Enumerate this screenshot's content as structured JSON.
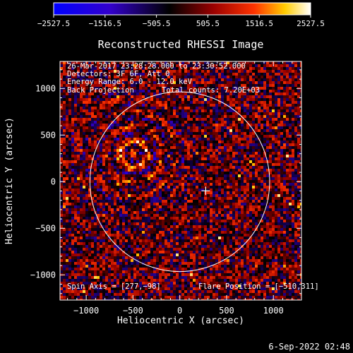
{
  "chart_data": {
    "type": "heatmap",
    "title": "Reconstructed RHESSI Image",
    "xlabel": "Heliocentric X (arcsec)",
    "ylabel": "Heliocentric Y (arcsec)",
    "xlim": [
      -1280,
      1300
    ],
    "ylim": [
      -1270,
      1290
    ],
    "x_ticks": [
      -1000,
      -500,
      0,
      500,
      1000
    ],
    "y_ticks": [
      -1000,
      -500,
      0,
      500,
      1000
    ],
    "x_tick_labels": [
      "−1000",
      "−500",
      "0",
      "500",
      "1000"
    ],
    "y_tick_labels": [
      "−1000",
      "−500",
      "0",
      "500",
      "1000"
    ],
    "colorbar": {
      "range": [
        -2527.5,
        2527.5
      ],
      "ticks": [
        -2527.5,
        -1516.5,
        -505.5,
        505.5,
        1516.5,
        2527.5
      ],
      "tick_labels": [
        "−2527.5",
        "−1516.5",
        "−505.5",
        "505.5",
        "1516.5",
        "2527.5"
      ],
      "colormap": [
        "#0000ff",
        "#3300cc",
        "#000000",
        "#990000",
        "#ff3300",
        "#ffcc00",
        "#ffffff"
      ]
    },
    "annotations": {
      "time_range": "26-Mar-2017 23:28:28.000 to 23:30:52.000",
      "detectors": "Detectors: 3F 6F, Att 0",
      "energy_range": "Energy Range: 6.0 - 12.0 keV",
      "method": "Back Projection",
      "total_counts": "Total counts: 7.20E+03",
      "spin_axis": "Spin Axis = [277,−98]",
      "flare_position": "Flare Position = [−510,311]"
    },
    "solar_limb_radius_arcsec": 960,
    "spin_axis_xy": [
      277,
      -98
    ],
    "flare_position_xy": [
      -510,
      311
    ],
    "grid": false,
    "colors": {
      "background": "#000000",
      "limb": "#ffffff",
      "marker": "#ffffff"
    }
  },
  "footer": {
    "timestamp": "6-Sep-2022 02:48"
  }
}
